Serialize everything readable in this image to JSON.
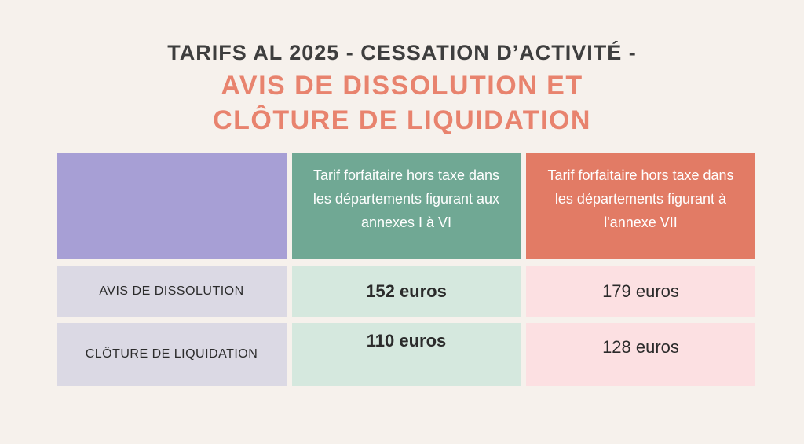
{
  "title": {
    "line1": "TARIFS AL 2025 - CESSATION D’ACTIVITÉ -",
    "line2": "AVIS DE DISSOLUTION ET",
    "line3": "CLÔTURE DE LIQUIDATION"
  },
  "table": {
    "columns": [
      {
        "header": ""
      },
      {
        "header": "Tarif forfaitaire hors taxe dans les départements figurant aux annexes I à VI"
      },
      {
        "header": "Tarif forfaitaire hors taxe dans les départements figurant à l'annexe VII"
      }
    ],
    "rows": [
      {
        "label": "AVIS DE DISSOLUTION",
        "annexes_1_6": "152 euros",
        "annexe_7": "179 euros"
      },
      {
        "label": "CLÔTURE DE LIQUIDATION",
        "annexes_1_6": "110 euros",
        "annexe_7": "128 euros"
      }
    ]
  },
  "chart_data": {
    "type": "table",
    "title": "TARIFS AL 2025 - CESSATION D’ACTIVITÉ - AVIS DE DISSOLUTION ET CLÔTURE DE LIQUIDATION",
    "columns": [
      "",
      "Tarif forfaitaire hors taxe dans les départements figurant aux annexes I à VI",
      "Tarif forfaitaire hors taxe dans les départements figurant à l'annexe VII"
    ],
    "rows": [
      [
        "AVIS DE DISSOLUTION",
        "152 euros",
        "179 euros"
      ],
      [
        "CLÔTURE DE LIQUIDATION",
        "110 euros",
        "128 euros"
      ]
    ],
    "values_eur": {
      "avis_de_dissolution": {
        "annexes_I_VI": 152,
        "annexe_VII": 179
      },
      "cloture_de_liquidation": {
        "annexes_I_VI": 110,
        "annexe_VII": 128
      }
    }
  },
  "colors": {
    "bg": "#f6f1ec",
    "title_dark": "#3e3e3e",
    "title_accent": "#e8836e",
    "col_header_purple": "#a79fd5",
    "col_header_green": "#70a894",
    "col_header_coral": "#e27b65",
    "cell_lavender": "#dbd9e4",
    "cell_mint": "#d5e8de",
    "cell_pink": "#fce0e2",
    "header_text": "#ffffff",
    "text_dark": "#2b2b2b"
  }
}
